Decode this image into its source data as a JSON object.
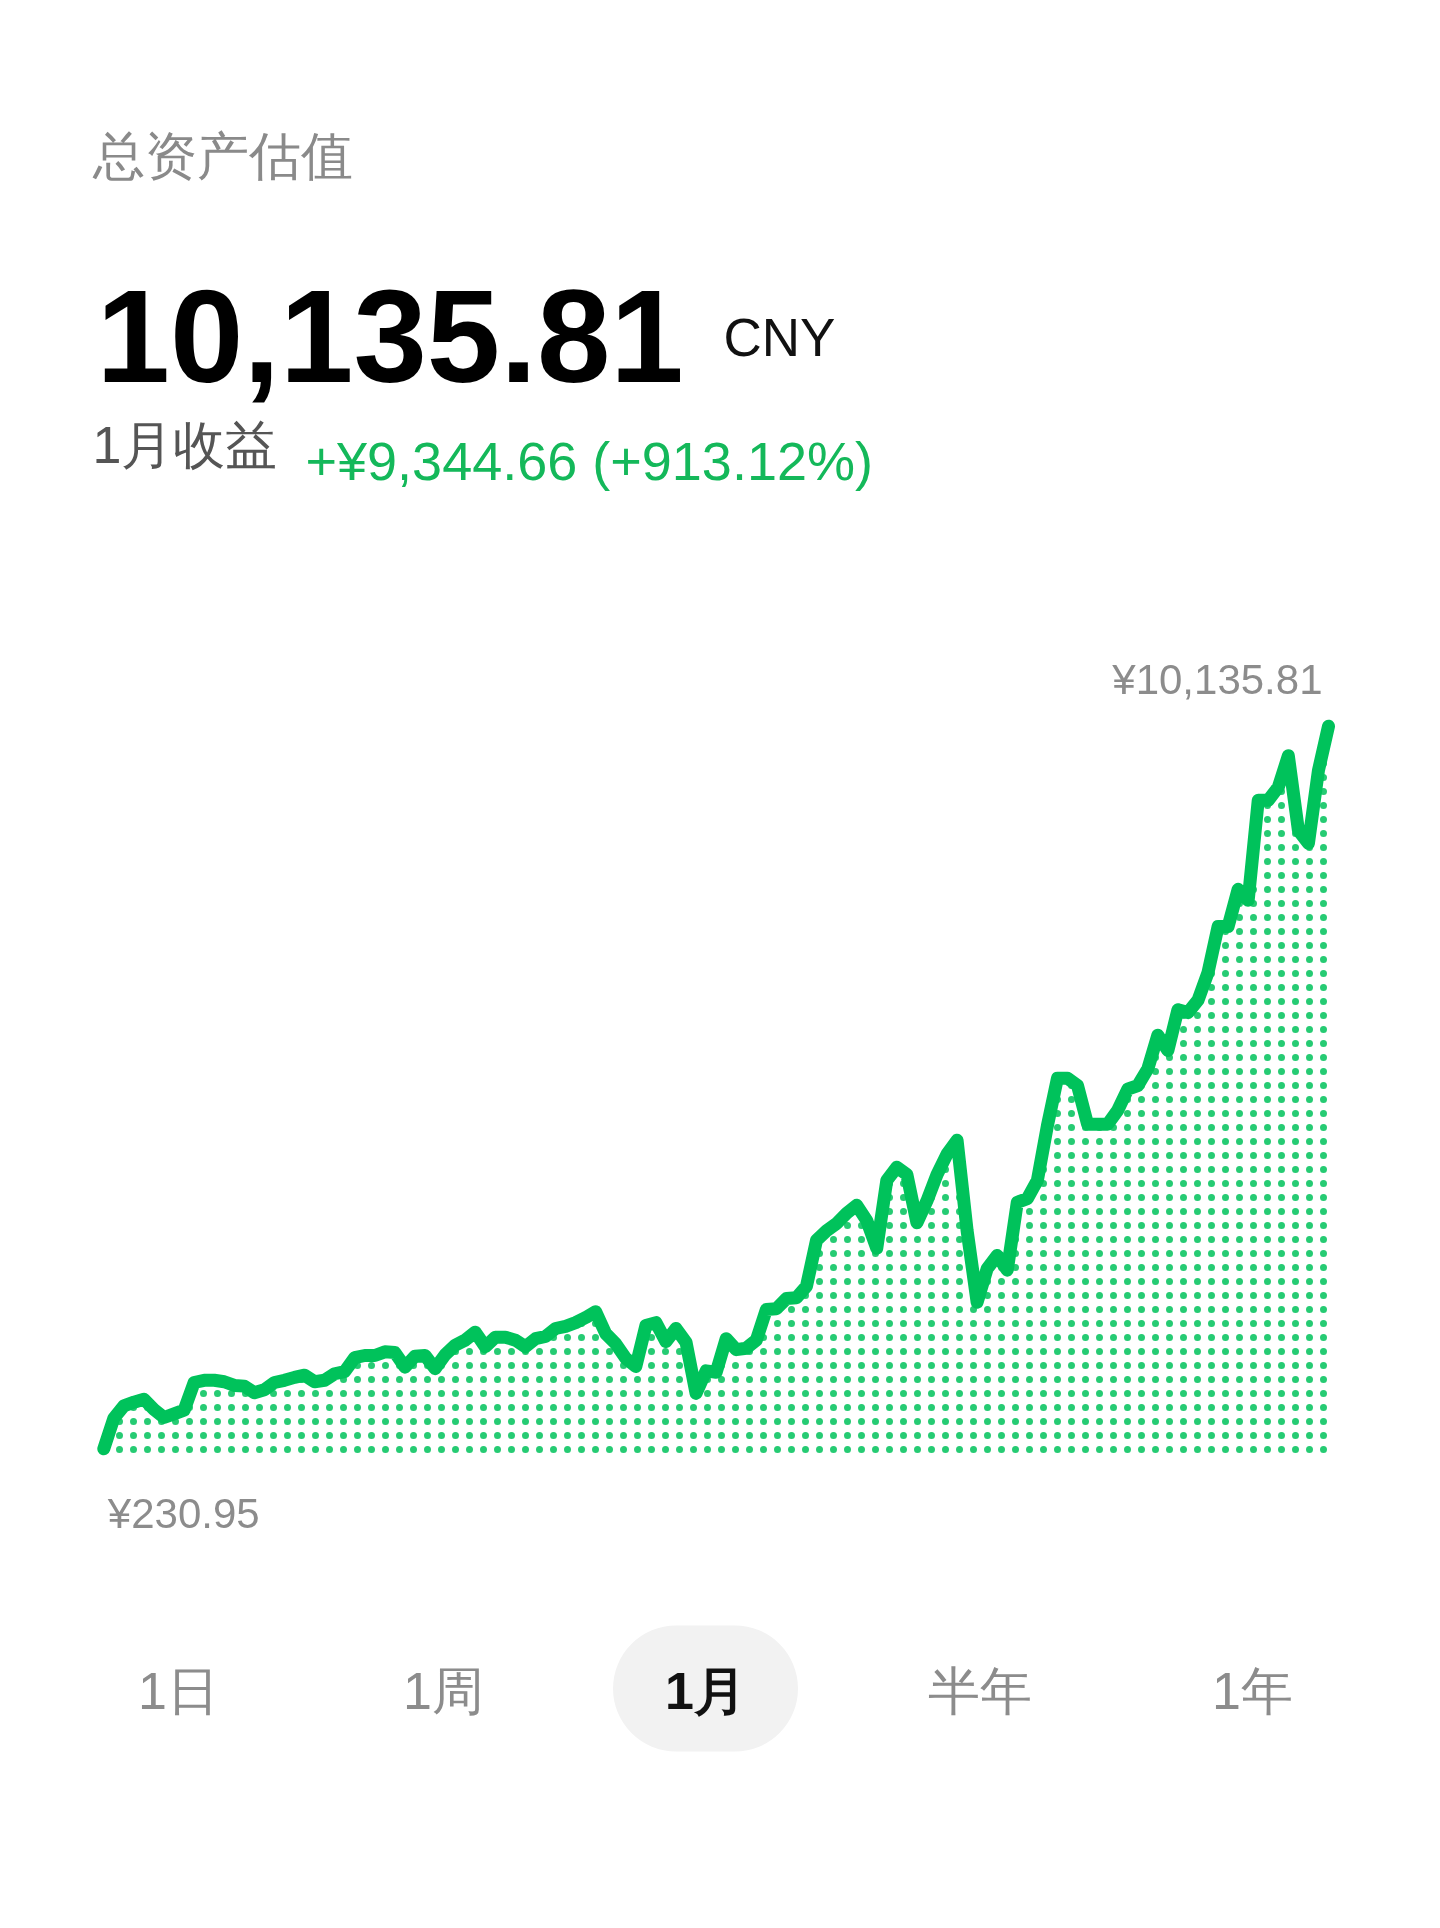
{
  "chart_data": {
    "type": "area",
    "title": "总资产估值",
    "annotations": [
      "10,135.81",
      "CNY",
      "1月收益",
      "+¥9,344.66 (+913.12%)",
      "1日",
      "1周",
      "1月",
      "半年",
      "1年"
    ],
    "categories": [
      null,
      null,
      null,
      null,
      null,
      null,
      null,
      null,
      null,
      null,
      null,
      null,
      null,
      null,
      null,
      null,
      null,
      null,
      null,
      null,
      null,
      null,
      null,
      null,
      null,
      null,
      null,
      null,
      null,
      null,
      null,
      null,
      null,
      null,
      null,
      null,
      null,
      null,
      null,
      null,
      null,
      null,
      null,
      null,
      null,
      null,
      null,
      null,
      null,
      null,
      null,
      null,
      null,
      null,
      null,
      null,
      null,
      null,
      null,
      null,
      null,
      null,
      null,
      null,
      null,
      null,
      null,
      null,
      null,
      null,
      null,
      null,
      null,
      null,
      null,
      null,
      null,
      null,
      null,
      null,
      null,
      null,
      null,
      null,
      null,
      null,
      null,
      null,
      null,
      null,
      null,
      null,
      null,
      null,
      null,
      null,
      null,
      null,
      null,
      null,
      null,
      null,
      null,
      null,
      null,
      null,
      null,
      null,
      null,
      null,
      null,
      null,
      null,
      null,
      null,
      null,
      null,
      null,
      null,
      null,
      null,
      null,
      null
    ],
    "values": [
      230.95,
      650,
      820,
      870,
      910,
      770,
      660,
      710,
      760,
      1140,
      1170,
      1170,
      1150,
      1100,
      1090,
      1000,
      1040,
      1140,
      1170,
      1210,
      1240,
      1150,
      1170,
      1260,
      1290,
      1480,
      1510,
      1510,
      1560,
      1550,
      1350,
      1500,
      1510,
      1330,
      1520,
      1650,
      1720,
      1830,
      1630,
      1760,
      1760,
      1720,
      1630,
      1740,
      1770,
      1880,
      1910,
      1960,
      2030,
      2110,
      1810,
      1670,
      1470,
      1360,
      1920,
      1960,
      1700,
      1880,
      1690,
      990,
      1300,
      1280,
      1740,
      1590,
      1610,
      1720,
      2140,
      2150,
      2290,
      2300,
      2460,
      3090,
      3220,
      3320,
      3460,
      3570,
      3360,
      2980,
      3910,
      4090,
      3990,
      3330,
      3630,
      3990,
      4270,
      4460,
      3220,
      2240,
      2700,
      2880,
      2680,
      3610,
      3660,
      3910,
      4660,
      5310,
      5310,
      5210,
      4680,
      4680,
      4680,
      4870,
      5160,
      5210,
      5440,
      5900,
      5690,
      6250,
      6210,
      6380,
      6760,
      7390,
      7390,
      7900,
      7750,
      9120,
      9120,
      9300,
      9730,
      8710,
      8530,
      9530,
      10135.81
    ],
    "value_labels": [
      "¥230.95",
      null,
      null,
      null,
      null,
      null,
      null,
      null,
      null,
      null,
      null,
      null,
      null,
      null,
      null,
      null,
      null,
      null,
      null,
      null,
      null,
      null,
      null,
      null,
      null,
      null,
      null,
      null,
      null,
      null,
      null,
      null,
      null,
      null,
      null,
      null,
      null,
      null,
      null,
      null,
      null,
      null,
      null,
      null,
      null,
      null,
      null,
      null,
      null,
      null,
      null,
      null,
      null,
      null,
      null,
      null,
      null,
      null,
      null,
      null,
      null,
      null,
      null,
      null,
      null,
      null,
      null,
      null,
      null,
      null,
      null,
      null,
      null,
      null,
      null,
      null,
      null,
      null,
      null,
      null,
      null,
      null,
      null,
      null,
      null,
      null,
      null,
      null,
      null,
      null,
      null,
      null,
      null,
      null,
      null,
      null,
      null,
      null,
      null,
      null,
      null,
      null,
      null,
      null,
      null,
      null,
      null,
      null,
      null,
      null,
      null,
      null,
      null,
      null,
      null,
      null,
      null,
      null,
      null,
      null,
      null,
      null,
      "¥10,135.81"
    ],
    "color": "#00c25b",
    "tick_labels": false
  }
}
